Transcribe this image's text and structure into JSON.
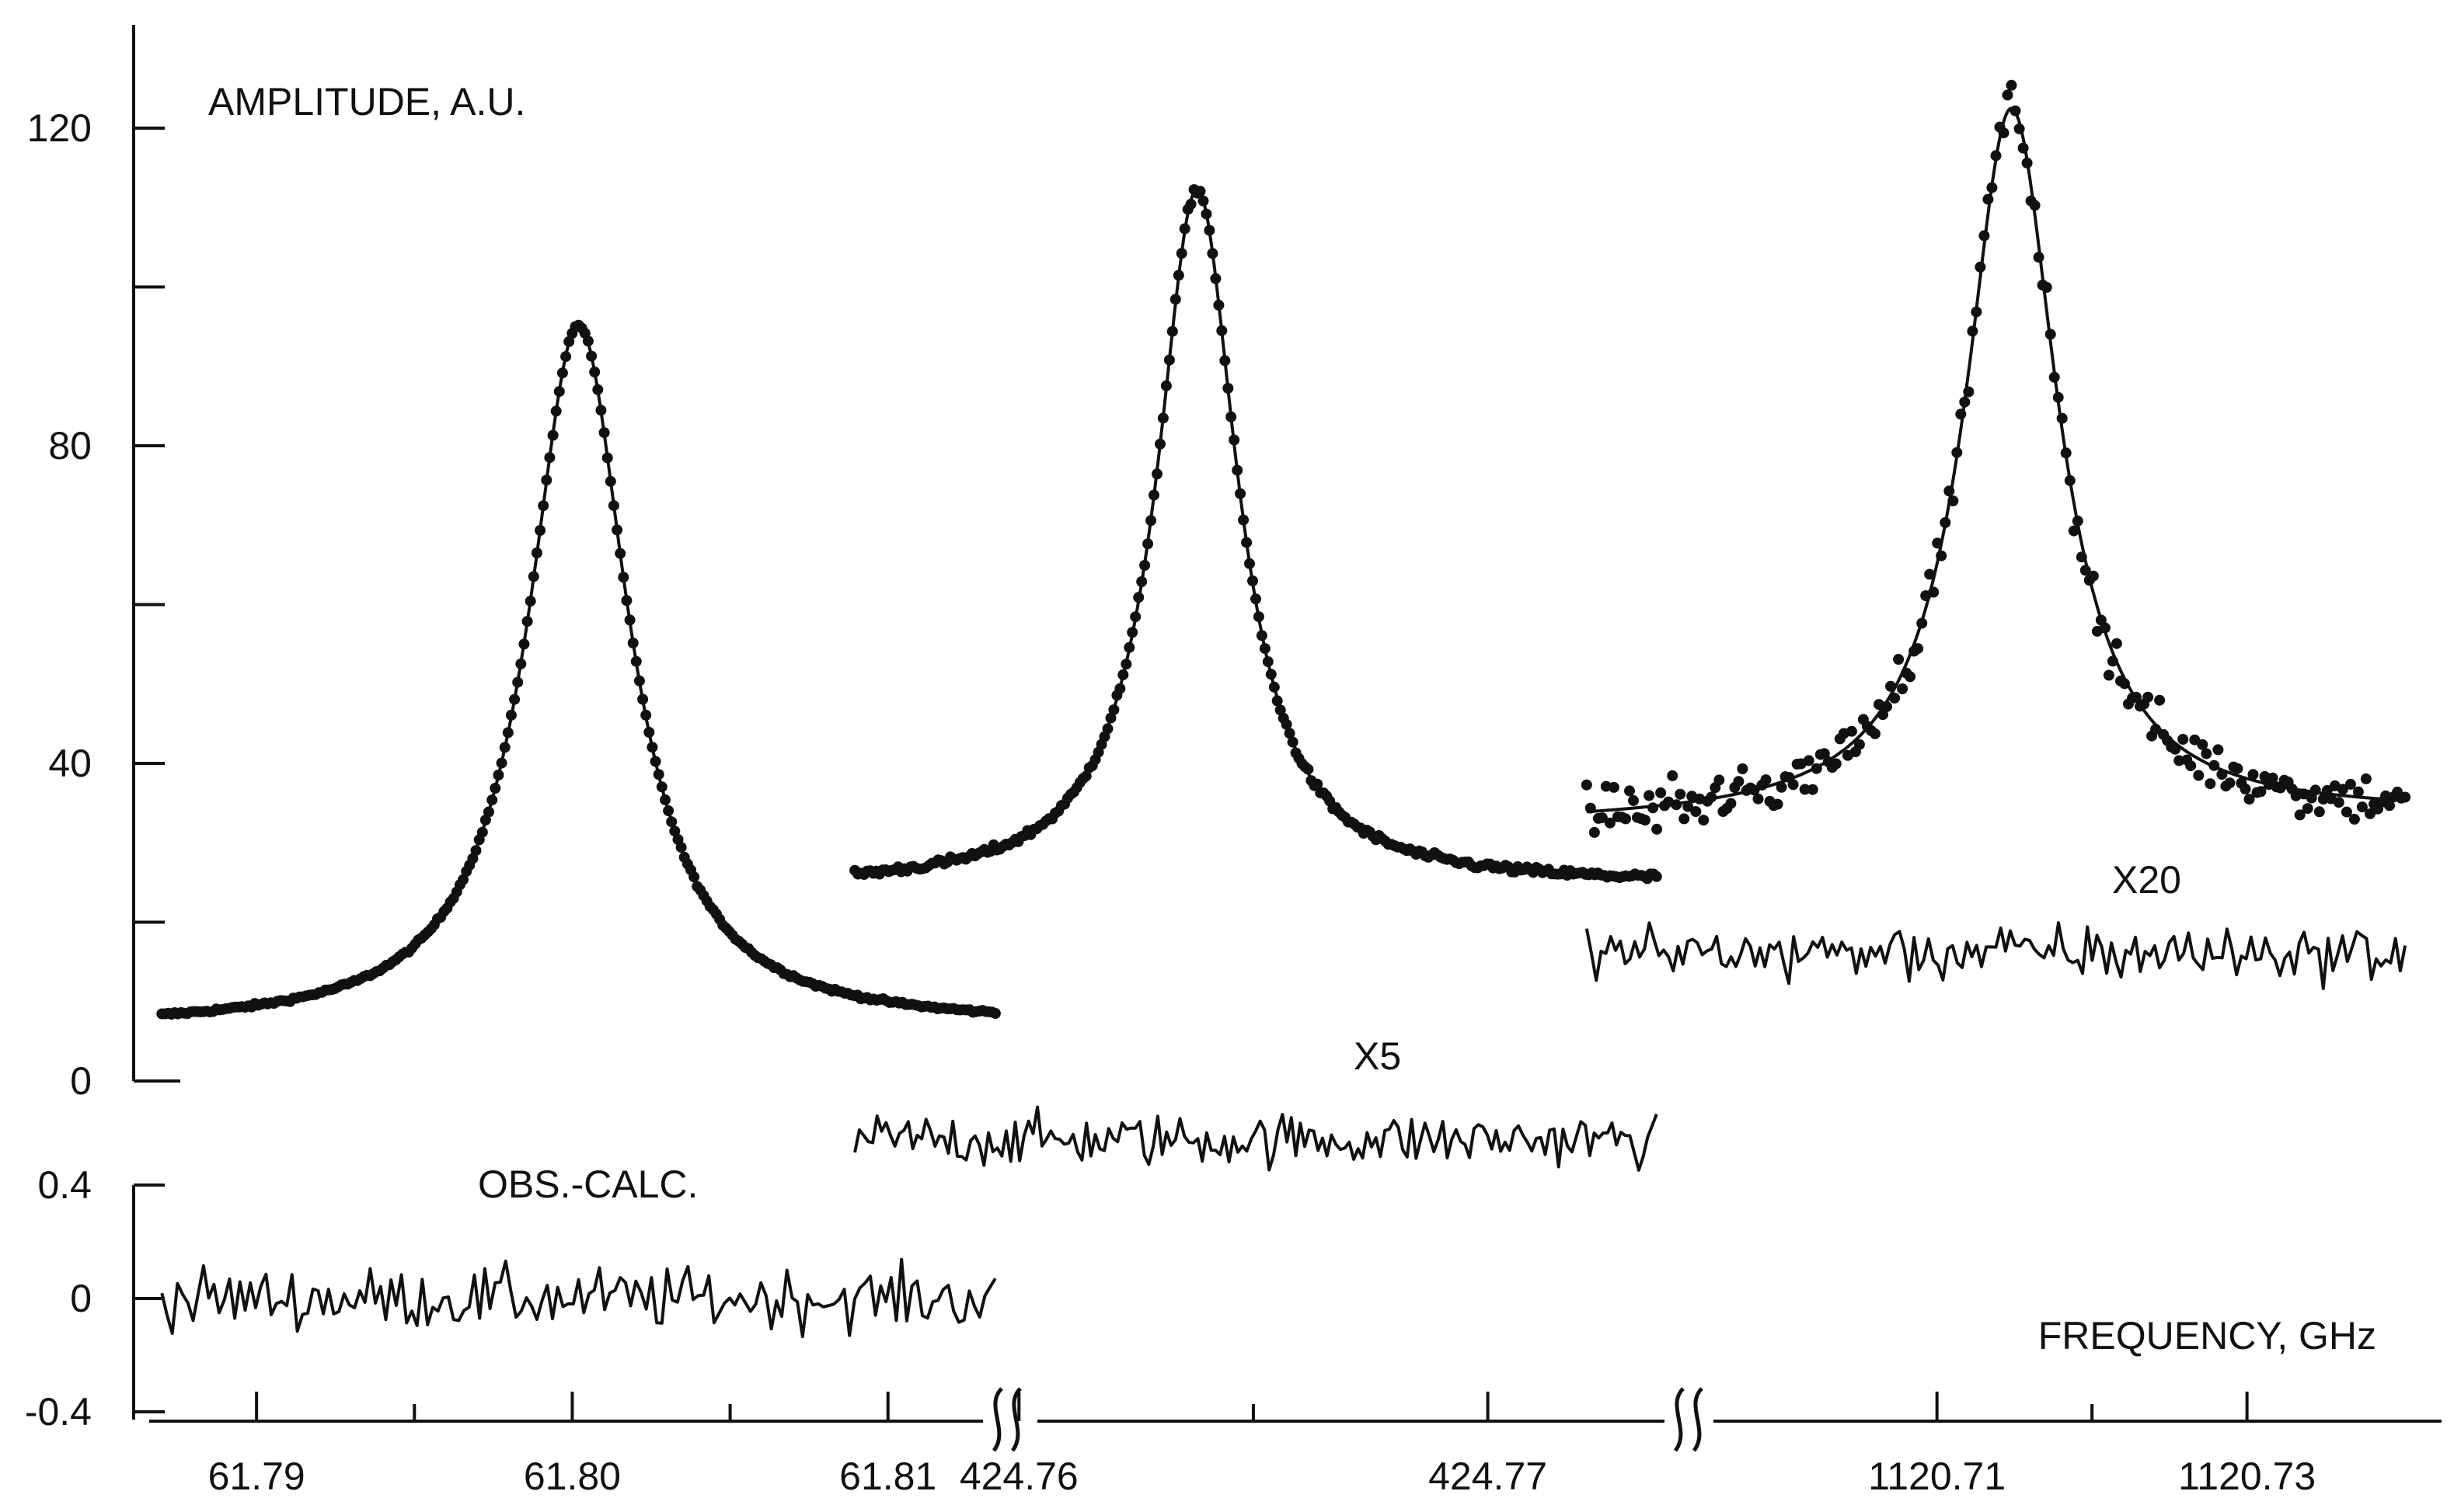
{
  "chart_data": {
    "type": "scatter",
    "ylabel": "AMPLITUDE,    A.U.",
    "xlabel": "FREQUENCY,    GHz",
    "main_axis": {
      "ylim": [
        0,
        130
      ],
      "ticks": [
        0,
        40,
        80,
        120
      ],
      "minor_ticks": [
        20,
        60,
        100
      ]
    },
    "residual_axis": {
      "ylim": [
        -0.4,
        0.4
      ],
      "ticks": [
        -0.4,
        0,
        0.4
      ]
    },
    "residual_label": "OBS.-CALC.",
    "segments": [
      {
        "xlim": [
          61.7866,
          61.8136
        ],
        "tick_values": [
          61.79,
          61.8,
          61.81
        ],
        "tick_labels": [
          "61.79",
          "61.80",
          "61.81"
        ],
        "minor_ticks": [
          61.795,
          61.805
        ],
        "line": {
          "center": 61.8002,
          "hwhm": 0.0019,
          "baseline": 6.7,
          "peak": 95.2,
          "slope": 0.02,
          "xrange": [
            61.787,
            61.8134
          ]
        },
        "residual": {
          "offset": 0,
          "amplitude": 0.14,
          "points": 160,
          "label": ""
        }
      },
      {
        "xlim": [
          424.7561,
          424.7742
        ],
        "tick_values": [
          424.76,
          424.77
        ],
        "tick_labels": [
          "424.76",
          "424.77"
        ],
        "minor_ticks": [
          424.765
        ],
        "line": {
          "center": 424.7638,
          "hwhm": 0.00104,
          "baseline": 24.5,
          "peak": 112.3,
          "slope": 0.02,
          "xrange": [
            424.7565,
            424.7736
          ]
        },
        "residual": {
          "offset": 0.56,
          "amplitude": 0.12,
          "points": 180,
          "label": "X5"
        }
      },
      {
        "xlim": [
          1120.6838,
          1120.7422
        ],
        "tick_values": [
          1120.71,
          1120.73
        ],
        "tick_labels": [
          "1120.71",
          "1120.73"
        ],
        "minor_ticks": [
          1120.72
        ],
        "line": {
          "center": 1120.7148,
          "hwhm": 0.0036,
          "baseline": 33.0,
          "peak": 122.5,
          "slope": 0.08,
          "xrange": [
            1120.6874,
            1120.7402
          ]
        },
        "residual": {
          "offset": 1.22,
          "amplitude": 0.13,
          "points": 170,
          "label": "X20"
        }
      }
    ],
    "grid": false,
    "legend": "none"
  }
}
